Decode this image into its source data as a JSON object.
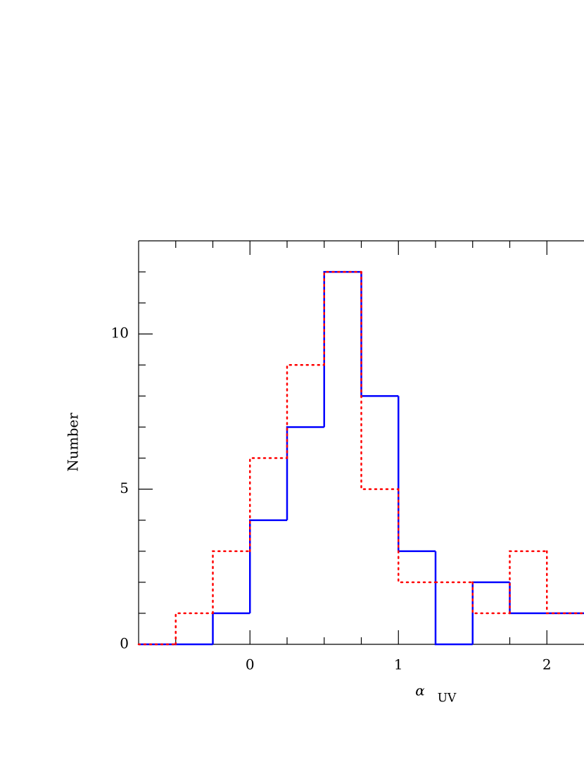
{
  "chart_data": {
    "type": "step_histogram",
    "ylabel": "Number",
    "xlabel": "α",
    "xlabel_sub": "UV",
    "bins": [
      -0.75,
      -0.5,
      -0.25,
      0,
      0.25,
      0.5,
      0.75,
      1,
      1.25,
      1.5,
      1.75,
      2,
      2.25
    ],
    "series": [
      {
        "color": "#0000ff",
        "line_style": "solid",
        "values": [
          0,
          0,
          1,
          4,
          7,
          12,
          8,
          3,
          0,
          2,
          1,
          1
        ]
      },
      {
        "color": "#ff0000",
        "line_style": "dotted",
        "values": [
          0,
          1,
          3,
          6,
          9,
          12,
          5,
          2,
          2,
          1,
          3,
          1
        ]
      }
    ],
    "xlim": [
      -0.75,
      2.25
    ],
    "ylim": [
      0,
      13
    ],
    "xticks": [
      0,
      1,
      2
    ],
    "yticks": [
      0,
      5,
      10
    ],
    "xticks_minor": [
      -0.5,
      -0.25,
      0.25,
      0.5,
      0.75,
      1.25,
      1.5,
      1.75
    ],
    "yticks_minor": [
      1,
      2,
      3,
      4,
      6,
      7,
      8,
      9,
      11,
      12
    ],
    "grid": false
  }
}
